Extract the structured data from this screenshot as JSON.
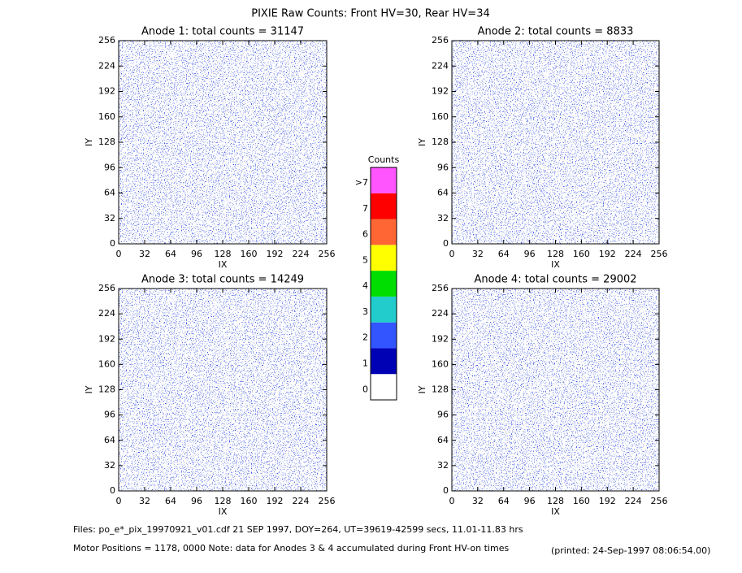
{
  "title": "PIXIE Raw Counts:  Front HV=30, Rear HV=34",
  "chart_data": [
    {
      "type": "heatmap",
      "title": "Anode 1: total counts = 31147",
      "x_label": "IX",
      "y_label": "IY",
      "xlim": [
        0,
        256
      ],
      "ylim": [
        0,
        256
      ],
      "xticks": [
        0,
        32,
        64,
        96,
        128,
        160,
        192,
        224,
        256
      ],
      "yticks": [
        0,
        32,
        64,
        96,
        128,
        160,
        192,
        224,
        256
      ]
    },
    {
      "type": "heatmap",
      "title": "Anode 2: total counts = 8833",
      "x_label": "IX",
      "y_label": "IY",
      "xlim": [
        0,
        256
      ],
      "ylim": [
        0,
        256
      ],
      "xticks": [
        0,
        32,
        64,
        96,
        128,
        160,
        192,
        224,
        256
      ],
      "yticks": [
        0,
        32,
        64,
        96,
        128,
        160,
        192,
        224,
        256
      ]
    },
    {
      "type": "heatmap",
      "title": "Anode 3: total counts = 14249",
      "x_label": "IX",
      "y_label": "IY",
      "xlim": [
        0,
        256
      ],
      "ylim": [
        0,
        256
      ],
      "xticks": [
        0,
        32,
        64,
        96,
        128,
        160,
        192,
        224,
        256
      ],
      "yticks": [
        0,
        32,
        64,
        96,
        128,
        160,
        192,
        224,
        256
      ]
    },
    {
      "type": "heatmap",
      "title": "Anode 4: total counts = 29002",
      "x_label": "IX",
      "y_label": "IY",
      "xlim": [
        0,
        256
      ],
      "ylim": [
        0,
        256
      ],
      "xticks": [
        0,
        32,
        64,
        96,
        128,
        160,
        192,
        224,
        256
      ],
      "yticks": [
        0,
        32,
        64,
        96,
        128,
        160,
        192,
        224,
        256
      ]
    }
  ],
  "colorbar": {
    "title": "Counts",
    "levels": [
      {
        "label": "0",
        "color": "#ffffff"
      },
      {
        "label": "1",
        "color": "#0000b4"
      },
      {
        "label": "2",
        "color": "#3355ff"
      },
      {
        "label": "3",
        "color": "#22cccc"
      },
      {
        "label": "4",
        "color": "#00dd00"
      },
      {
        "label": "5",
        "color": "#ffff00"
      },
      {
        "label": "6",
        "color": "#ff6633"
      },
      {
        "label": "7",
        "color": "#ff0000"
      },
      {
        "label": ">7",
        "color": "#ff55ff"
      }
    ]
  },
  "footer": {
    "files": "Files: po_e*_pix_19970921_v01.cdf    21 SEP 1997, DOY=264, UT=39619-42599 secs, 11.01-11.83 hrs",
    "motor": "Motor Positions = 1178, 0000   Note: data for Anodes 3 & 4 accumulated during Front HV-on times",
    "printed": "(printed: 24-Sep-1997 08:06:54.00)"
  }
}
